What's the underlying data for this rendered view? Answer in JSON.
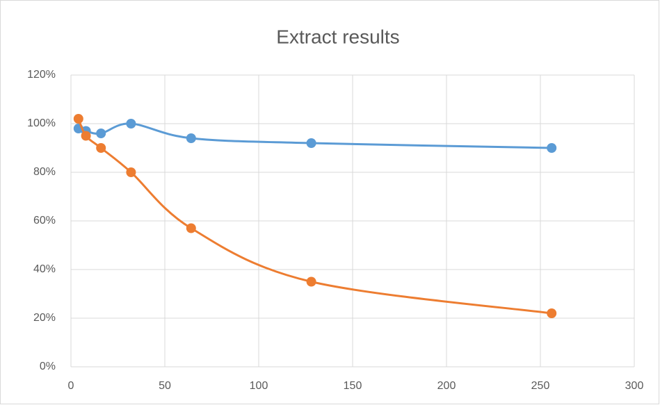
{
  "chart_data": {
    "type": "line",
    "title": "Extract results",
    "x": [
      4,
      8,
      16,
      32,
      64,
      128,
      256
    ],
    "series": [
      {
        "color": "#5b9bd5",
        "values": [
          98,
          97,
          96,
          100,
          94,
          92,
          90
        ]
      },
      {
        "color": "#ed7d31",
        "values": [
          102,
          95,
          90,
          80,
          57,
          35,
          22
        ]
      }
    ],
    "xlim": [
      0,
      300
    ],
    "xticks": [
      0,
      50,
      100,
      150,
      200,
      250,
      300
    ],
    "ylim": [
      0,
      120
    ],
    "yticks": [
      {
        "value": 0,
        "label": "0%"
      },
      {
        "value": 20,
        "label": "20%"
      },
      {
        "value": 40,
        "label": "40%"
      },
      {
        "value": 60,
        "label": "60%"
      },
      {
        "value": 80,
        "label": "80%"
      },
      {
        "value": 100,
        "label": "100%"
      },
      {
        "value": 120,
        "label": "120%"
      }
    ],
    "grid": true,
    "smooth": true
  }
}
